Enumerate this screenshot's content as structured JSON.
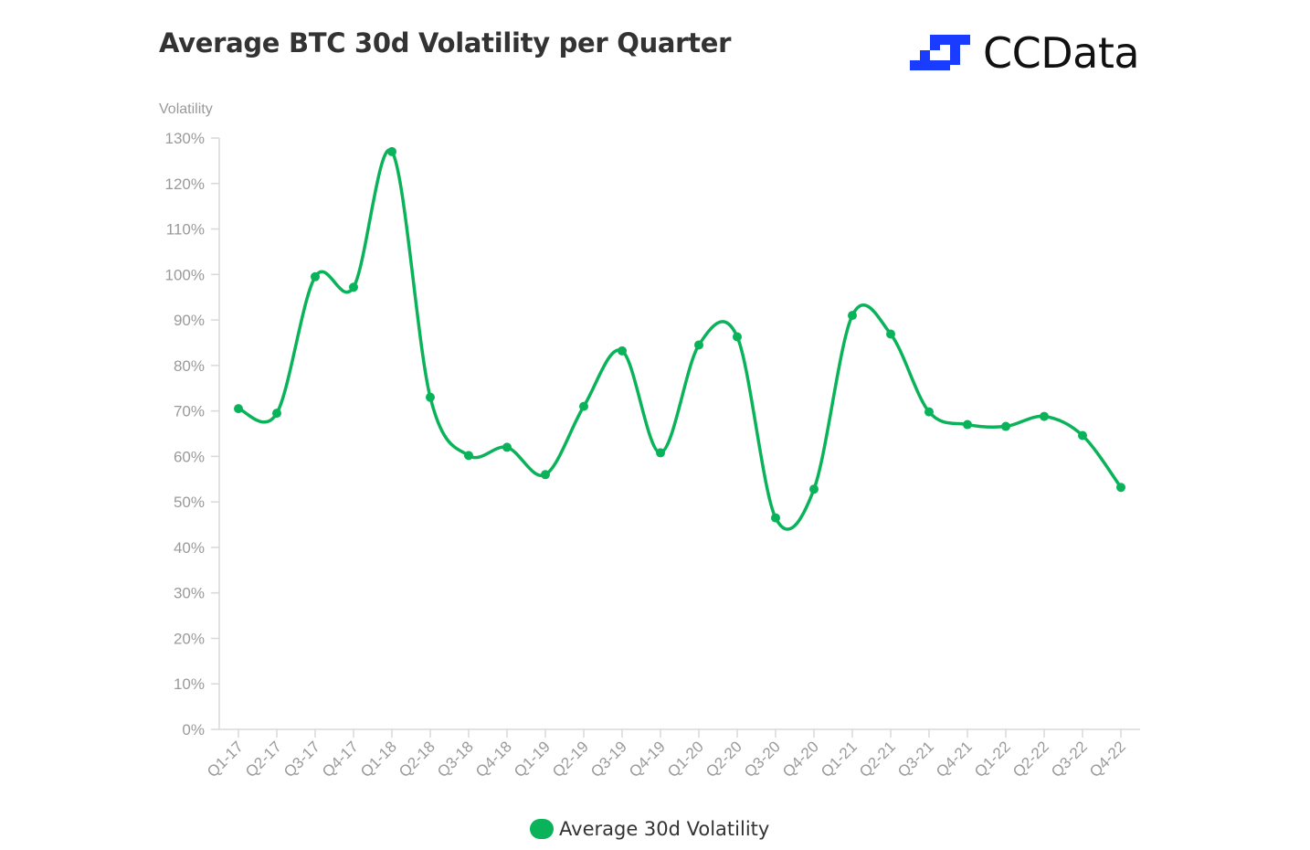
{
  "header": {
    "title": "Average BTC 30d Volatility per Quarter",
    "logo_text": "CCData",
    "logo_color": "#1a3cff"
  },
  "chart_data": {
    "type": "line",
    "title": "Average BTC 30d Volatility per Quarter",
    "ylabel": "Volatility",
    "xlabel": "",
    "ylim": [
      0,
      130
    ],
    "yticks": [
      "0%",
      "10%",
      "20%",
      "30%",
      "40%",
      "50%",
      "60%",
      "70%",
      "80%",
      "90%",
      "100%",
      "110%",
      "120%",
      "130%"
    ],
    "categories": [
      "Q1-17",
      "Q2-17",
      "Q3-17",
      "Q4-17",
      "Q1-18",
      "Q2-18",
      "Q3-18",
      "Q4-18",
      "Q1-19",
      "Q2-19",
      "Q3-19",
      "Q4-19",
      "Q1-20",
      "Q2-20",
      "Q3-20",
      "Q4-20",
      "Q1-21",
      "Q2-21",
      "Q3-21",
      "Q4-21",
      "Q1-22",
      "Q2-22",
      "Q3-22",
      "Q4-22"
    ],
    "series": [
      {
        "name": "Average 30d Volatility",
        "color": "#0ab35a",
        "values": [
          70.5,
          69.5,
          99.5,
          97.2,
          127,
          73,
          60.2,
          62,
          56,
          71,
          83.2,
          60.8,
          84.5,
          86.3,
          46.5,
          52.8,
          91,
          86.9,
          69.8,
          67,
          66.6,
          68.8,
          64.6,
          53.2
        ]
      }
    ],
    "grid": false,
    "legend": "bottom"
  }
}
